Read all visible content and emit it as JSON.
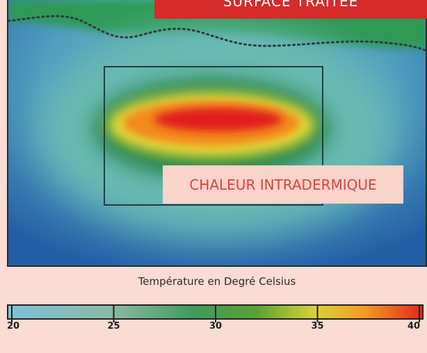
{
  "banner": {
    "text": "SURFACE TRAITÉE"
  },
  "heat_label": {
    "text": "CHALEUR INTRADERMIQUE"
  },
  "scale": {
    "title": "Température en Degré Celsius",
    "min": 20,
    "max": 40,
    "ticks": [
      "20",
      "25",
      "30",
      "35",
      "40"
    ]
  },
  "colors": {
    "cool_blue": "#2f74b3",
    "mid_teal": "#6ab9b4",
    "green": "#1f7f3a",
    "yellow": "#e9de3c",
    "orange": "#f28a1e",
    "red": "#e41f1f",
    "frame": "#2b3a3f"
  }
}
